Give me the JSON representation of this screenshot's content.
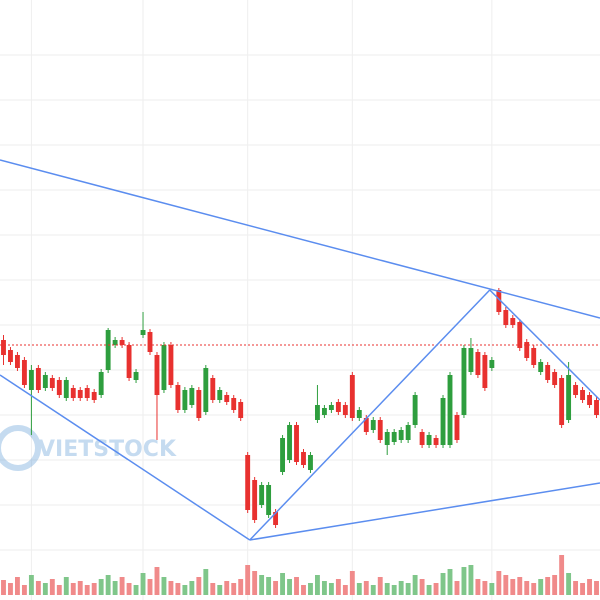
{
  "chart_data": {
    "type": "candlestick",
    "watermark": "VIETSTOCK",
    "xlim": [
      -0.5,
      85.5
    ],
    "xticks": [
      4,
      20,
      35,
      50,
      70
    ],
    "ylim": [
      0,
      600
    ],
    "yticks": [
      545,
      500,
      455,
      410,
      365,
      320,
      275,
      230,
      185,
      140,
      95,
      50
    ],
    "grid": true,
    "up_color": "#2e9e3e",
    "down_color": "#e8312f",
    "volume_up_color": "#7fc68a",
    "volume_down_color": "#f08a8a",
    "volume_lim": [
      0,
      60
    ],
    "open": [
      260,
      250,
      245,
      240,
      210,
      232,
      212,
      222,
      220,
      202,
      212,
      210,
      212,
      208,
      205,
      230,
      255,
      260,
      255,
      220,
      265,
      268,
      245,
      210,
      255,
      215,
      190,
      195,
      210,
      188,
      222,
      200,
      205,
      202,
      198,
      145,
      120,
      95,
      85,
      88,
      128,
      140,
      175,
      148,
      130,
      180,
      185,
      190,
      198,
      195,
      225,
      182,
      182,
      170,
      180,
      155,
      158,
      160,
      160,
      175,
      168,
      155,
      162,
      155,
      155,
      185,
      185,
      228,
      248,
      245,
      232,
      310,
      290,
      282,
      278,
      258,
      252,
      228,
      235,
      228,
      222,
      180,
      215,
      210,
      205,
      200
    ],
    "high": [
      265,
      253,
      248,
      243,
      235,
      235,
      228,
      225,
      223,
      223,
      215,
      213,
      215,
      211,
      231,
      272,
      263,
      263,
      258,
      231,
      288,
      271,
      248,
      258,
      258,
      218,
      213,
      215,
      213,
      235,
      225,
      213,
      208,
      205,
      201,
      148,
      123,
      118,
      118,
      91,
      165,
      178,
      178,
      151,
      148,
      215,
      195,
      198,
      201,
      198,
      228,
      193,
      185,
      183,
      183,
      171,
      171,
      173,
      178,
      208,
      171,
      168,
      165,
      205,
      228,
      188,
      255,
      262,
      251,
      248,
      243,
      312,
      293,
      285,
      281,
      261,
      255,
      241,
      238,
      231,
      225,
      238,
      218,
      213,
      208,
      203
    ],
    "low": [
      235,
      235,
      229,
      212,
      165,
      207,
      209,
      209,
      202,
      199,
      199,
      199,
      199,
      197,
      202,
      227,
      252,
      252,
      219,
      217,
      262,
      245,
      160,
      207,
      212,
      187,
      187,
      192,
      179,
      185,
      197,
      197,
      195,
      187,
      179,
      87,
      77,
      92,
      82,
      72,
      125,
      137,
      135,
      132,
      127,
      177,
      182,
      187,
      185,
      182,
      179,
      179,
      165,
      167,
      157,
      145,
      155,
      157,
      157,
      172,
      152,
      152,
      152,
      152,
      152,
      157,
      182,
      225,
      222,
      209,
      229,
      285,
      272,
      272,
      249,
      239,
      232,
      225,
      217,
      212,
      172,
      177,
      202,
      197,
      192,
      182
    ],
    "close": [
      245,
      238,
      232,
      215,
      230,
      210,
      225,
      212,
      205,
      220,
      202,
      202,
      202,
      200,
      228,
      270,
      260,
      255,
      222,
      228,
      270,
      248,
      205,
      255,
      215,
      190,
      210,
      212,
      182,
      232,
      200,
      210,
      198,
      190,
      182,
      90,
      80,
      115,
      115,
      75,
      162,
      175,
      138,
      135,
      145,
      195,
      192,
      195,
      188,
      185,
      182,
      190,
      168,
      180,
      160,
      168,
      168,
      170,
      175,
      205,
      155,
      165,
      155,
      202,
      225,
      160,
      252,
      252,
      225,
      212,
      240,
      288,
      275,
      275,
      252,
      242,
      235,
      238,
      220,
      215,
      175,
      225,
      205,
      200,
      195,
      185
    ],
    "volume": [
      15,
      12,
      18,
      10,
      20,
      14,
      12,
      16,
      10,
      18,
      12,
      14,
      10,
      12,
      16,
      20,
      14,
      18,
      12,
      10,
      22,
      16,
      28,
      18,
      14,
      12,
      10,
      14,
      18,
      26,
      12,
      10,
      14,
      12,
      16,
      30,
      24,
      20,
      18,
      14,
      22,
      16,
      18,
      10,
      12,
      20,
      14,
      12,
      16,
      10,
      24,
      12,
      14,
      10,
      18,
      12,
      10,
      14,
      12,
      20,
      16,
      10,
      12,
      22,
      26,
      14,
      28,
      30,
      16,
      14,
      12,
      24,
      20,
      16,
      18,
      14,
      12,
      16,
      18,
      20,
      40,
      22,
      14,
      12,
      16,
      14
    ],
    "trendline_color": "#5b8def",
    "trendlines": [
      [
        [
          -0.5,
          440
        ],
        [
          85.5,
          282
        ]
      ],
      [
        [
          -0.5,
          225
        ],
        [
          35.3,
          60
        ]
      ],
      [
        [
          35.3,
          60
        ],
        [
          51.8,
          180
        ]
      ],
      [
        [
          51.8,
          180
        ],
        [
          69.7,
          310
        ]
      ],
      [
        [
          69.7,
          310
        ],
        [
          85.5,
          200
        ]
      ],
      [
        [
          35.3,
          60
        ],
        [
          85.5,
          117
        ]
      ]
    ],
    "reference_line": {
      "value": 255,
      "color": "#e8312f"
    }
  }
}
